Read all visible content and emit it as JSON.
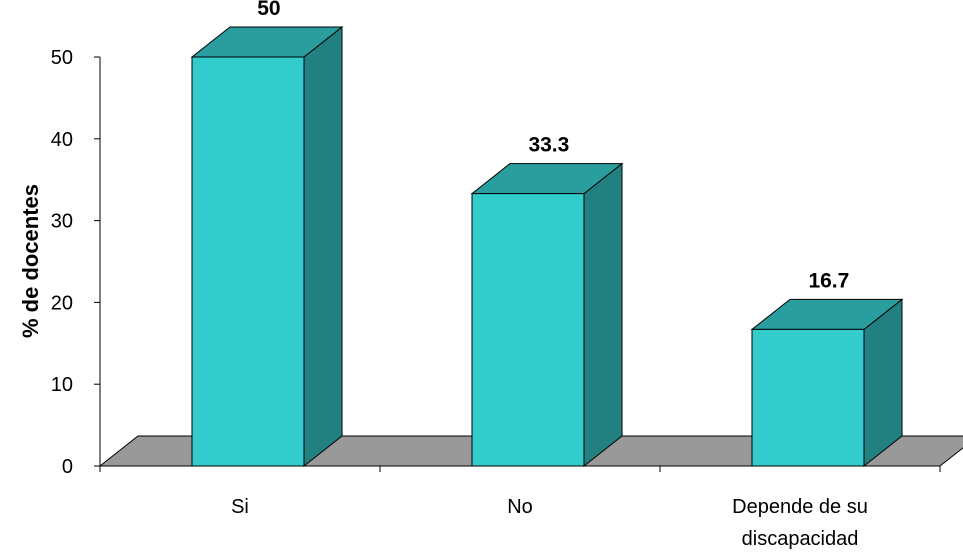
{
  "chart_data": {
    "type": "bar",
    "style": "3d-column",
    "categories": [
      "Si",
      "No",
      "Depende de su discapacidad"
    ],
    "category_label_lines": [
      [
        "Si"
      ],
      [
        "No"
      ],
      [
        "Depende de su",
        "discapacidad"
      ]
    ],
    "values": [
      50,
      33.3,
      16.7
    ],
    "data_labels": [
      "50",
      "33.3",
      "16.7"
    ],
    "title": "",
    "xlabel": "",
    "ylabel": "% de docentes",
    "ylim": [
      0,
      50
    ],
    "yticks": [
      0,
      10,
      20,
      30,
      40,
      50
    ],
    "grid": false,
    "legend": "none",
    "colors": {
      "bar_front": "#33cccc",
      "bar_top": "#2a9e9e",
      "bar_side": "#238080",
      "floor": "#999999",
      "outline": "#000000"
    }
  }
}
